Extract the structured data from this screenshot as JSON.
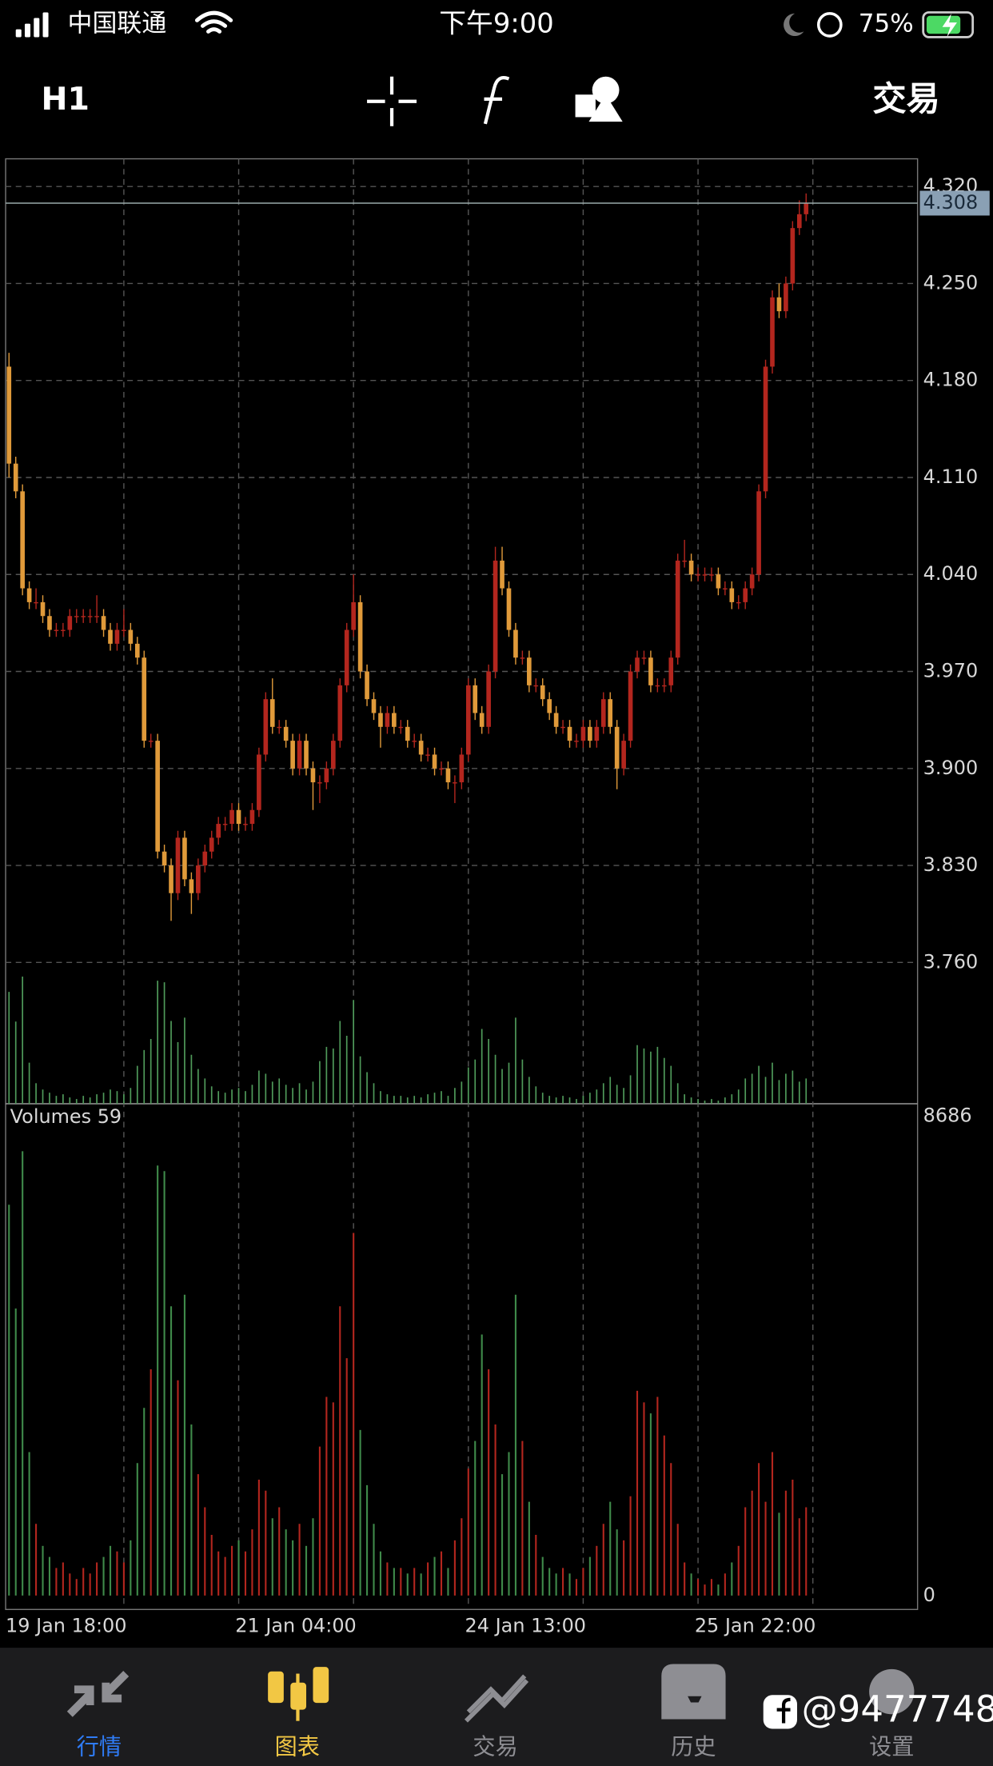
{
  "status_bar": {
    "carrier": "中国联通",
    "time": "下午9:00",
    "battery": "75%"
  },
  "toolbar": {
    "timeframe": "H1",
    "trade": "交易"
  },
  "chart_data": [
    {
      "type": "candlestick",
      "up_color": "#b3261e",
      "down_color": "#e09a3a",
      "grid": true,
      "ylim": [
        3.658,
        4.34
      ],
      "yticks": [
        {
          "value": 4.32,
          "label": "4.320"
        },
        {
          "value": 4.25,
          "label": "4.250"
        },
        {
          "value": 4.18,
          "label": "4.180"
        },
        {
          "value": 4.11,
          "label": "4.110"
        },
        {
          "value": 4.04,
          "label": "4.040"
        },
        {
          "value": 3.97,
          "label": "3.970"
        },
        {
          "value": 3.9,
          "label": "3.900"
        },
        {
          "value": 3.83,
          "label": "3.830"
        },
        {
          "value": 3.76,
          "label": "3.760"
        }
      ],
      "current_price": {
        "value": 4.308,
        "label": "4.308"
      },
      "categories": [
        "19 Jan 18:00",
        null,
        null,
        null,
        null,
        null,
        null,
        null,
        null,
        null,
        null,
        null,
        null,
        null,
        null,
        null,
        null,
        null,
        null,
        null,
        null,
        null,
        null,
        null,
        null,
        null,
        null,
        null,
        null,
        null,
        null,
        null,
        null,
        null,
        "21 Jan 04:00",
        null,
        null,
        null,
        null,
        null,
        null,
        null,
        null,
        null,
        null,
        null,
        null,
        null,
        null,
        null,
        null,
        null,
        null,
        null,
        null,
        null,
        null,
        null,
        null,
        null,
        null,
        null,
        null,
        null,
        null,
        null,
        null,
        null,
        "24 Jan 13:00",
        null,
        null,
        null,
        null,
        null,
        null,
        null,
        null,
        null,
        null,
        null,
        null,
        null,
        null,
        null,
        null,
        null,
        null,
        null,
        null,
        null,
        null,
        null,
        null,
        null,
        null,
        null,
        null,
        null,
        null,
        null,
        null,
        null,
        "25 Jan 22:00",
        null,
        null,
        null,
        null,
        null,
        null,
        null,
        null,
        null,
        null,
        null,
        null,
        null,
        null,
        null,
        null
      ],
      "ohlc": [
        [
          4.19,
          4.2,
          4.11,
          4.12
        ],
        [
          4.12,
          4.125,
          4.095,
          4.1
        ],
        [
          4.1,
          4.105,
          4.025,
          4.03
        ],
        [
          4.03,
          4.035,
          4.015,
          4.02
        ],
        [
          4.02,
          4.03,
          4.015,
          4.02
        ],
        [
          4.02,
          4.025,
          4.005,
          4.01
        ],
        [
          4.01,
          4.015,
          3.995,
          4.0
        ],
        [
          4.0,
          4.005,
          3.995,
          4.0
        ],
        [
          4.0,
          4.005,
          3.995,
          4.0
        ],
        [
          4.0,
          4.015,
          3.995,
          4.01
        ],
        [
          4.01,
          4.015,
          4.005,
          4.01
        ],
        [
          4.01,
          4.015,
          4.005,
          4.01
        ],
        [
          4.01,
          4.015,
          4.005,
          4.01
        ],
        [
          4.01,
          4.025,
          4.005,
          4.01
        ],
        [
          4.01,
          4.015,
          3.995,
          4.0
        ],
        [
          4.0,
          4.005,
          3.985,
          3.99
        ],
        [
          3.99,
          4.005,
          3.985,
          4.0
        ],
        [
          4.0,
          4.015,
          3.995,
          4.0
        ],
        [
          4.0,
          4.005,
          3.985,
          3.99
        ],
        [
          3.99,
          3.995,
          3.975,
          3.98
        ],
        [
          3.98,
          3.985,
          3.915,
          3.92
        ],
        [
          3.92,
          3.925,
          3.915,
          3.92
        ],
        [
          3.92,
          3.925,
          3.835,
          3.84
        ],
        [
          3.84,
          3.845,
          3.825,
          3.83
        ],
        [
          3.83,
          3.835,
          3.79,
          3.81
        ],
        [
          3.81,
          3.855,
          3.805,
          3.85
        ],
        [
          3.85,
          3.855,
          3.815,
          3.82
        ],
        [
          3.82,
          3.825,
          3.795,
          3.81
        ],
        [
          3.81,
          3.835,
          3.805,
          3.83
        ],
        [
          3.83,
          3.845,
          3.825,
          3.84
        ],
        [
          3.84,
          3.855,
          3.835,
          3.85
        ],
        [
          3.85,
          3.865,
          3.845,
          3.86
        ],
        [
          3.86,
          3.865,
          3.855,
          3.86
        ],
        [
          3.86,
          3.875,
          3.855,
          3.87
        ],
        [
          3.87,
          3.875,
          3.855,
          3.86
        ],
        [
          3.86,
          3.865,
          3.855,
          3.86
        ],
        [
          3.86,
          3.875,
          3.855,
          3.87
        ],
        [
          3.87,
          3.915,
          3.865,
          3.91
        ],
        [
          3.91,
          3.955,
          3.905,
          3.95
        ],
        [
          3.95,
          3.965,
          3.925,
          3.93
        ],
        [
          3.93,
          3.935,
          3.925,
          3.93
        ],
        [
          3.93,
          3.935,
          3.915,
          3.92
        ],
        [
          3.92,
          3.925,
          3.895,
          3.9
        ],
        [
          3.9,
          3.925,
          3.895,
          3.92
        ],
        [
          3.92,
          3.925,
          3.895,
          3.9
        ],
        [
          3.9,
          3.905,
          3.87,
          3.89
        ],
        [
          3.89,
          3.895,
          3.875,
          3.89
        ],
        [
          3.89,
          3.905,
          3.885,
          3.9
        ],
        [
          3.9,
          3.925,
          3.895,
          3.92
        ],
        [
          3.92,
          3.965,
          3.915,
          3.96
        ],
        [
          3.96,
          4.005,
          3.955,
          4.0
        ],
        [
          4.0,
          4.04,
          3.995,
          4.02
        ],
        [
          4.02,
          4.025,
          3.965,
          3.97
        ],
        [
          3.97,
          3.975,
          3.945,
          3.95
        ],
        [
          3.95,
          3.955,
          3.935,
          3.94
        ],
        [
          3.94,
          3.945,
          3.915,
          3.93
        ],
        [
          3.93,
          3.945,
          3.925,
          3.94
        ],
        [
          3.94,
          3.945,
          3.925,
          3.93
        ],
        [
          3.93,
          3.935,
          3.925,
          3.93
        ],
        [
          3.93,
          3.935,
          3.915,
          3.92
        ],
        [
          3.92,
          3.925,
          3.915,
          3.92
        ],
        [
          3.92,
          3.925,
          3.905,
          3.91
        ],
        [
          3.91,
          3.915,
          3.905,
          3.91
        ],
        [
          3.91,
          3.915,
          3.895,
          3.9
        ],
        [
          3.9,
          3.905,
          3.895,
          3.9
        ],
        [
          3.9,
          3.905,
          3.885,
          3.89
        ],
        [
          3.89,
          3.895,
          3.875,
          3.89
        ],
        [
          3.89,
          3.915,
          3.885,
          3.91
        ],
        [
          3.91,
          3.965,
          3.905,
          3.96
        ],
        [
          3.96,
          3.965,
          3.935,
          3.94
        ],
        [
          3.94,
          3.945,
          3.925,
          3.93
        ],
        [
          3.93,
          3.975,
          3.925,
          3.97
        ],
        [
          3.97,
          4.06,
          3.965,
          4.05
        ],
        [
          4.05,
          4.06,
          4.025,
          4.03
        ],
        [
          4.03,
          4.035,
          3.995,
          4.0
        ],
        [
          4.0,
          4.005,
          3.975,
          3.98
        ],
        [
          3.98,
          3.985,
          3.975,
          3.98
        ],
        [
          3.98,
          3.985,
          3.955,
          3.96
        ],
        [
          3.96,
          3.965,
          3.955,
          3.96
        ],
        [
          3.96,
          3.965,
          3.945,
          3.95
        ],
        [
          3.95,
          3.955,
          3.935,
          3.94
        ],
        [
          3.94,
          3.945,
          3.925,
          3.93
        ],
        [
          3.93,
          3.935,
          3.925,
          3.93
        ],
        [
          3.93,
          3.935,
          3.915,
          3.92
        ],
        [
          3.92,
          3.925,
          3.915,
          3.92
        ],
        [
          3.92,
          3.935,
          3.915,
          3.93
        ],
        [
          3.93,
          3.935,
          3.915,
          3.92
        ],
        [
          3.92,
          3.935,
          3.915,
          3.93
        ],
        [
          3.93,
          3.955,
          3.925,
          3.95
        ],
        [
          3.95,
          3.955,
          3.925,
          3.93
        ],
        [
          3.93,
          3.935,
          3.885,
          3.9
        ],
        [
          3.9,
          3.925,
          3.895,
          3.92
        ],
        [
          3.92,
          3.975,
          3.915,
          3.97
        ],
        [
          3.97,
          3.985,
          3.965,
          3.98
        ],
        [
          3.98,
          3.985,
          3.975,
          3.98
        ],
        [
          3.98,
          3.985,
          3.955,
          3.96
        ],
        [
          3.96,
          3.965,
          3.955,
          3.96
        ],
        [
          3.96,
          3.965,
          3.955,
          3.96
        ],
        [
          3.96,
          3.985,
          3.955,
          3.98
        ],
        [
          3.98,
          4.055,
          3.975,
          4.05
        ],
        [
          4.05,
          4.065,
          4.045,
          4.05
        ],
        [
          4.05,
          4.055,
          4.035,
          4.04
        ],
        [
          4.04,
          4.045,
          4.035,
          4.04
        ],
        [
          4.04,
          4.045,
          4.035,
          4.04
        ],
        [
          4.04,
          4.045,
          4.035,
          4.04
        ],
        [
          4.04,
          4.045,
          4.025,
          4.03
        ],
        [
          4.03,
          4.035,
          4.025,
          4.03
        ],
        [
          4.03,
          4.035,
          4.015,
          4.02
        ],
        [
          4.02,
          4.025,
          4.015,
          4.02
        ],
        [
          4.02,
          4.035,
          4.015,
          4.03
        ],
        [
          4.03,
          4.045,
          4.025,
          4.04
        ],
        [
          4.04,
          4.105,
          4.035,
          4.1
        ],
        [
          4.1,
          4.195,
          4.095,
          4.19
        ],
        [
          4.19,
          4.245,
          4.185,
          4.24
        ],
        [
          4.24,
          4.25,
          4.225,
          4.23
        ],
        [
          4.23,
          4.255,
          4.225,
          4.25
        ],
        [
          4.25,
          4.295,
          4.245,
          4.29
        ],
        [
          4.29,
          4.31,
          4.285,
          4.3
        ],
        [
          4.3,
          4.315,
          4.295,
          4.308
        ]
      ]
    },
    {
      "type": "bar",
      "title": "Volumes 59",
      "up_color": "#b3261e",
      "down_color": "#3f8a4a",
      "overlay_color": "#4f9a5a",
      "ylim": [
        -231,
        8910
      ],
      "yticks": [
        8686,
        0
      ],
      "values": [
        7080,
        5200,
        8050,
        2600,
        1300,
        900,
        700,
        500,
        600,
        400,
        300,
        500,
        400,
        600,
        700,
        900,
        800,
        600,
        1000,
        2400,
        3400,
        4100,
        7790,
        7690,
        5240,
        3900,
        5450,
        3100,
        2200,
        1600,
        1100,
        800,
        700,
        900,
        1000,
        800,
        1200,
        2100,
        1900,
        1400,
        1600,
        1200,
        1000,
        1300,
        900,
        1400,
        2700,
        3600,
        3500,
        5240,
        4300,
        6570,
        3000,
        2000,
        1300,
        800,
        600,
        500,
        500,
        400,
        500,
        400,
        600,
        700,
        800,
        500,
        1000,
        1400,
        2300,
        2800,
        4730,
        4100,
        3100,
        2200,
        2600,
        5450,
        2800,
        1700,
        1100,
        700,
        500,
        400,
        500,
        400,
        300,
        500,
        700,
        900,
        1300,
        1700,
        1200,
        1000,
        1800,
        3710,
        3500,
        3300,
        3600,
        2900,
        2400,
        1300,
        600,
        400,
        300,
        200,
        300,
        200,
        400,
        600,
        900,
        1600,
        1900,
        2400,
        1700,
        2600,
        1500,
        1900,
        2100,
        1400,
        1600
      ]
    }
  ],
  "tab_bar": {
    "tabs": [
      "行情",
      "图表",
      "交易",
      "历史",
      "设置"
    ],
    "active_color": "#f2c744",
    "quotes_color": "#2f7cf6",
    "color": "#8e8e93"
  },
  "watermark": "@9477748"
}
